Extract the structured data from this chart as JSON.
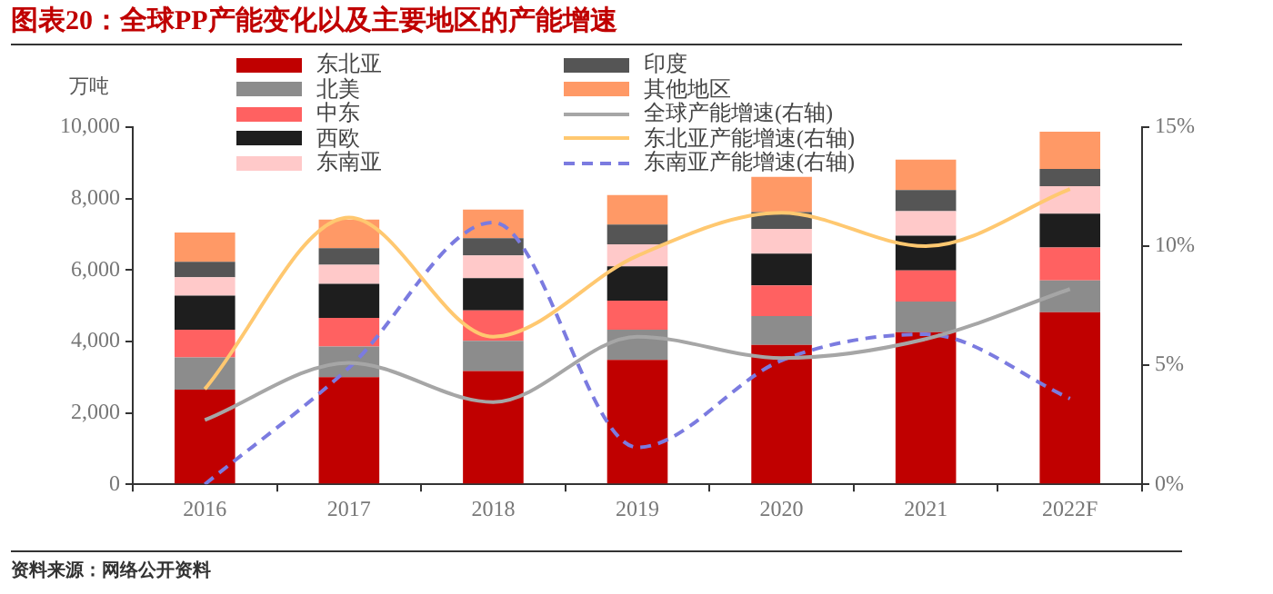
{
  "chart_data": {
    "type": "bar",
    "title": "图表20：全球PP产能变化以及主要地区的产能增速",
    "ylabel": "万吨",
    "annotations": [
      "资料来源：网络公开资料"
    ],
    "categories": [
      "2016",
      "2017",
      "2018",
      "2019",
      "2020",
      "2021",
      "2022F"
    ],
    "stacked": true,
    "legend": "top",
    "grid": false,
    "marker": "none",
    "ylim": [
      0,
      10000
    ],
    "yticks": [
      0,
      {
        "value": 2000,
        "label": "2,000"
      },
      {
        "value": 4000,
        "label": "4,000"
      },
      {
        "value": 6000,
        "label": "6,000"
      },
      {
        "value": 8000,
        "label": "8,000"
      },
      {
        "value": 10000,
        "label": "10,000"
      }
    ],
    "y2lim": [
      0,
      15
    ],
    "y2ticks": [
      {
        "value": 0,
        "label": "0%"
      },
      {
        "value": 5,
        "label": "5%"
      },
      {
        "value": 10,
        "label": "10%"
      },
      {
        "value": 15,
        "label": "15%"
      }
    ],
    "series": [
      {
        "name": "东北亚",
        "color": "#c00000",
        "values": [
          2650,
          3000,
          3170,
          3480,
          3900,
          4260,
          4820
        ]
      },
      {
        "name": "北美",
        "color": "#8c8c8c",
        "values": [
          900,
          860,
          850,
          850,
          810,
          860,
          890
        ]
      },
      {
        "name": "中东",
        "color": "#ff6161",
        "values": [
          780,
          800,
          850,
          810,
          860,
          870,
          920
        ]
      },
      {
        "name": "西欧",
        "color": "#1e1e1e",
        "values": [
          950,
          950,
          900,
          960,
          890,
          970,
          950
        ]
      },
      {
        "name": "东南亚",
        "color": "#ffc9c9",
        "values": [
          520,
          540,
          640,
          620,
          690,
          690,
          770
        ]
      },
      {
        "name": "印度",
        "color": "#555555",
        "values": [
          430,
          460,
          480,
          550,
          470,
          590,
          480
        ]
      },
      {
        "name": "其他地区",
        "color": "#ff9966",
        "values": [
          820,
          800,
          800,
          830,
          990,
          850,
          1040
        ]
      },
      {
        "name": "全球产能增速(右轴)",
        "type": "line",
        "axis": "y2",
        "color": "#a6a6a6",
        "line_style": "solid",
        "values": [
          2.7,
          5.1,
          3.45,
          6.2,
          5.3,
          6.1,
          8.2
        ]
      },
      {
        "name": "东北亚产能增速(右轴)",
        "type": "line",
        "axis": "y2",
        "color": "#ffc870",
        "line_style": "solid",
        "values": [
          4.0,
          11.2,
          6.2,
          9.6,
          11.4,
          10.0,
          12.4
        ]
      },
      {
        "name": "东南亚产能增速(右轴)",
        "type": "line",
        "axis": "y2",
        "color": "#7b7be0",
        "line_style": "dashed",
        "values": [
          0,
          4.9,
          11.0,
          1.55,
          5.2,
          6.3,
          3.6
        ]
      }
    ]
  }
}
